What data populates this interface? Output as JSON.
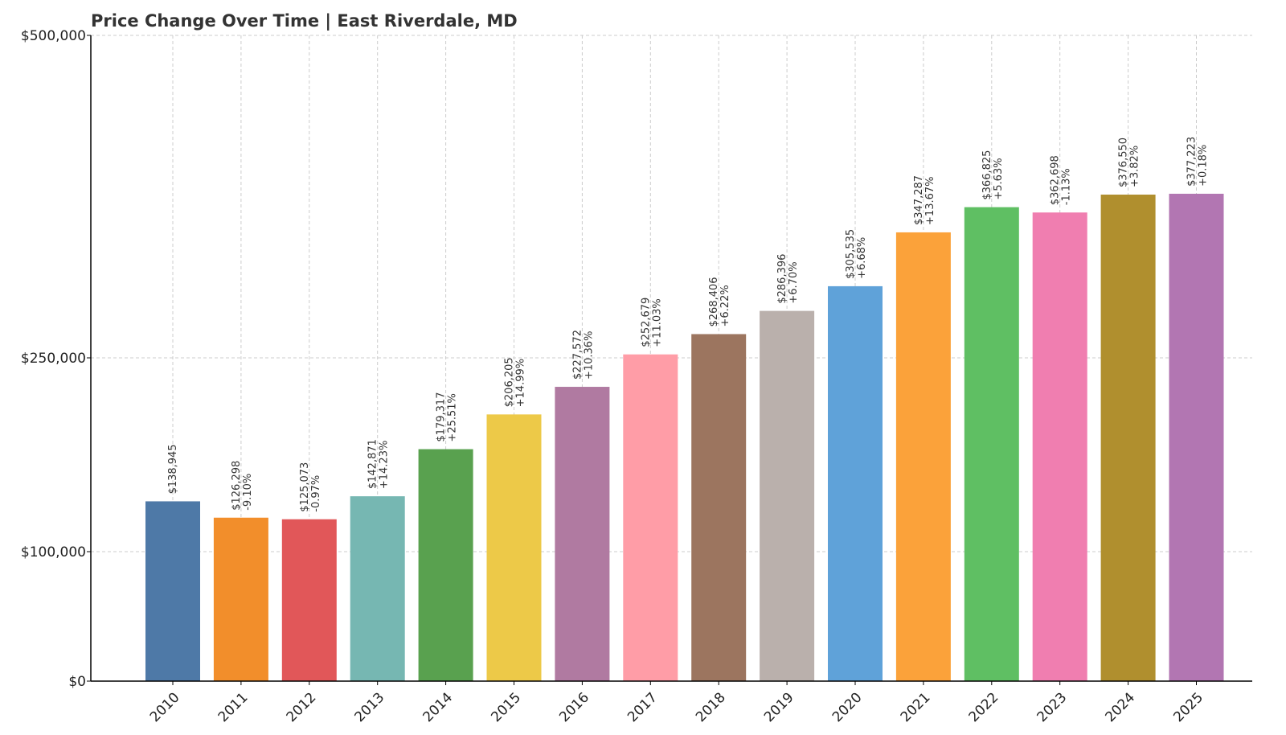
{
  "chart_data": {
    "type": "bar",
    "title": "Price Change Over Time | East Riverdale, MD",
    "xlabel": "",
    "ylabel": "",
    "y_scale": "piecewise-linear",
    "ylim": [
      0,
      500000
    ],
    "yticks": [
      0,
      100000,
      250000,
      500000
    ],
    "ytick_labels": [
      "$0",
      "$100,000",
      "$250,000",
      "$500,000"
    ],
    "grid": true,
    "categories": [
      "2010",
      "2011",
      "2012",
      "2013",
      "2014",
      "2015",
      "2016",
      "2017",
      "2018",
      "2019",
      "2020",
      "2021",
      "2022",
      "2023",
      "2024",
      "2025"
    ],
    "values": [
      138945,
      126298,
      125073,
      142871,
      179317,
      206205,
      227572,
      252679,
      268406,
      286396,
      305535,
      347287,
      366825,
      362698,
      376550,
      377223
    ],
    "value_labels": [
      "$138,945",
      "$126,298",
      "$125,073",
      "$142,871",
      "$179,317",
      "$206,205",
      "$227,572",
      "$252,679",
      "$268,406",
      "$286,396",
      "$305,535",
      "$347,287",
      "$366,825",
      "$362,698",
      "$376,550",
      "$377,223"
    ],
    "change_labels": [
      "",
      "-9.10%",
      "-0.97%",
      "+14.23%",
      "+25.51%",
      "+14.99%",
      "+10.36%",
      "+11.03%",
      "+6.22%",
      "+6.70%",
      "+6.68%",
      "+13.67%",
      "+5.63%",
      "-1.13%",
      "+3.82%",
      "+0.18%"
    ],
    "colors": [
      "#4e79a7",
      "#f28e2b",
      "#e15759",
      "#76b7b2",
      "#59a14f",
      "#edc948",
      "#b07aa1",
      "#ff9da7",
      "#9c755f",
      "#bab0ac",
      "#5fa2d9",
      "#fba23a",
      "#5fbf63",
      "#f07eb0",
      "#b08f2e",
      "#b276b2"
    ]
  }
}
